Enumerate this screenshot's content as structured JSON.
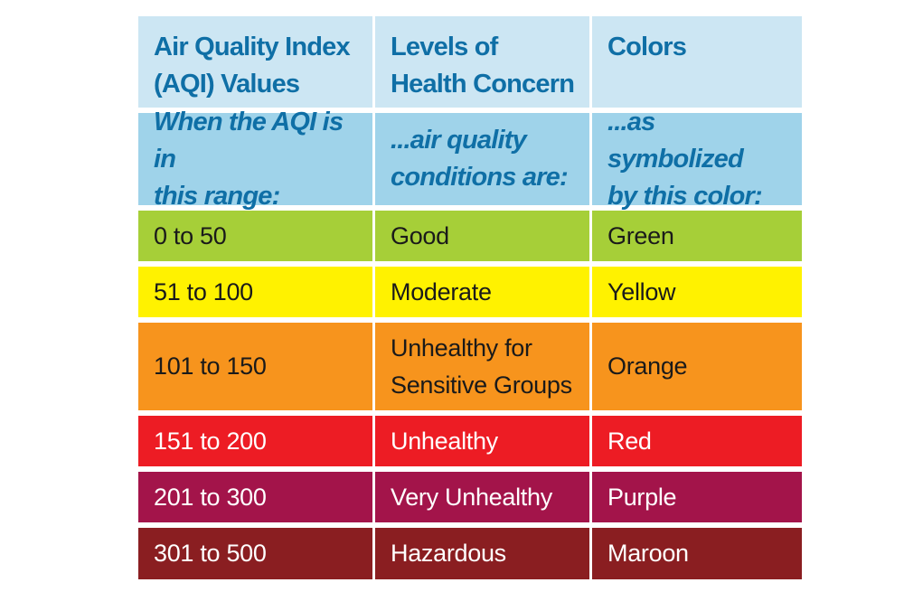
{
  "table": {
    "headers": [
      [
        "Air Quality Index",
        "(AQI) Values"
      ],
      [
        "Levels of",
        "Health Concern"
      ],
      [
        "Colors"
      ]
    ],
    "subheaders": [
      [
        "When the AQI is in",
        "this range:"
      ],
      [
        "...air quality",
        "conditions are:"
      ],
      [
        "...as symbolized",
        "by this color:"
      ]
    ],
    "rows": [
      {
        "range": "0 to 50",
        "level": [
          "Good"
        ],
        "color_name": "Green",
        "swatch": "#a6cf38"
      },
      {
        "range": "51 to 100",
        "level": [
          "Moderate"
        ],
        "color_name": "Yellow",
        "swatch": "#fff200"
      },
      {
        "range": "101 to 150",
        "level": [
          "Unhealthy for",
          "Sensitive Groups"
        ],
        "color_name": "Orange",
        "swatch": "#f7941d"
      },
      {
        "range": "151 to 200",
        "level": [
          "Unhealthy"
        ],
        "color_name": "Red",
        "swatch": "#ed1c24"
      },
      {
        "range": "201 to 300",
        "level": [
          "Very Unhealthy"
        ],
        "color_name": "Purple",
        "swatch": "#a3144a"
      },
      {
        "range": "301 to 500",
        "level": [
          "Hazardous"
        ],
        "color_name": "Maroon",
        "swatch": "#8a1e21"
      }
    ]
  }
}
